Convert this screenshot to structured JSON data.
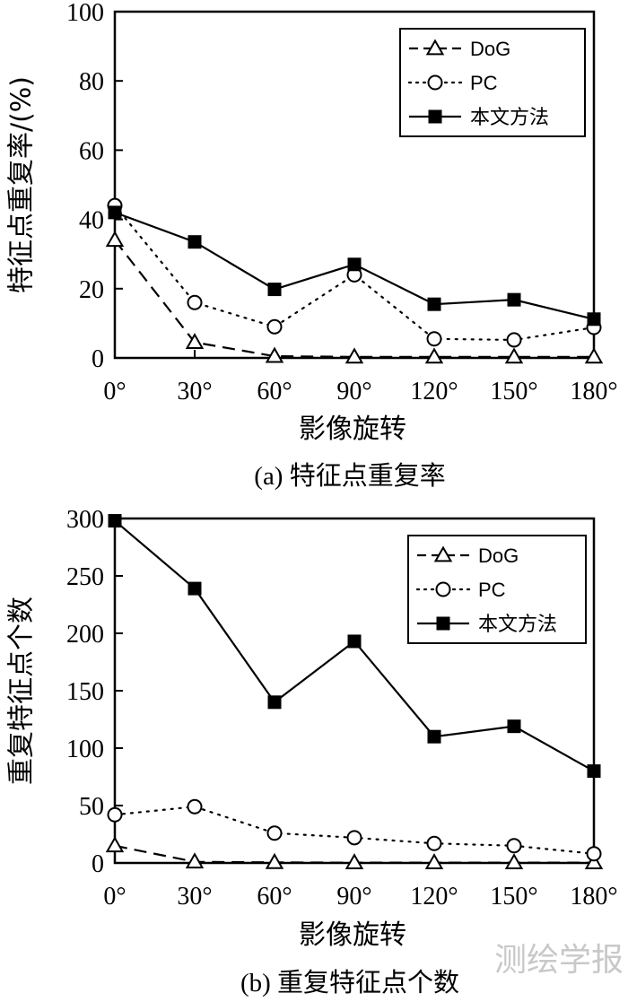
{
  "chart_data": [
    {
      "type": "line",
      "title": "",
      "caption": "(a) 特征点重复率",
      "xlabel": "影像旋转",
      "ylabel": "特征点重复率/(%)",
      "categories": [
        "0°",
        "30°",
        "60°",
        "90°",
        "120°",
        "150°",
        "180°"
      ],
      "ylim": [
        0,
        100
      ],
      "yticks": [
        "0",
        "20",
        "40",
        "60",
        "80",
        "100"
      ],
      "legend_position": "top-right",
      "series": [
        {
          "name": "DoG",
          "style": "dashed",
          "marker": "triangle-open",
          "values": [
            34,
            4.5,
            0.5,
            0.3,
            0.3,
            0.3,
            0.3
          ]
        },
        {
          "name": "PC",
          "style": "dotted",
          "marker": "circle-open",
          "values": [
            44,
            16,
            9,
            24,
            5.5,
            5.2,
            8.8
          ]
        },
        {
          "name": "本文方法",
          "style": "solid",
          "marker": "square-filled",
          "values": [
            42,
            33.5,
            19.8,
            27,
            15.5,
            16.8,
            11.2
          ]
        }
      ]
    },
    {
      "type": "line",
      "title": "",
      "caption": "(b) 重复特征点个数",
      "xlabel": "影像旋转",
      "ylabel": "重复特征点个数",
      "categories": [
        "0°",
        "30°",
        "60°",
        "90°",
        "120°",
        "150°",
        "180°"
      ],
      "ylim": [
        0,
        300
      ],
      "yticks": [
        "0",
        "50",
        "100",
        "150",
        "200",
        "250",
        "300"
      ],
      "legend_position": "top-right",
      "series": [
        {
          "name": "DoG",
          "style": "dashed",
          "marker": "triangle-open",
          "values": [
            15,
            1,
            0.5,
            0.3,
            0.3,
            0.3,
            0.3
          ]
        },
        {
          "name": "PC",
          "style": "dotted",
          "marker": "circle-open",
          "values": [
            42,
            49,
            26,
            22,
            17,
            15,
            8
          ]
        },
        {
          "name": "本文方法",
          "style": "solid",
          "marker": "square-filled",
          "values": [
            298,
            239,
            140,
            193,
            110,
            119,
            80
          ]
        }
      ]
    }
  ],
  "watermark": "测绘学报"
}
